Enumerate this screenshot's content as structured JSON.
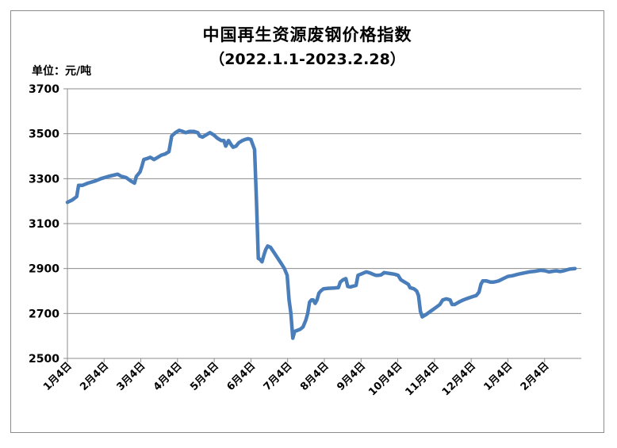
{
  "chart_data": {
    "type": "line",
    "title": "中国再生资源废钢价格指数",
    "subtitle": "（2022.1.1-2023.2.28）",
    "unit": "单位：元/吨",
    "ylim": [
      2500,
      3700
    ],
    "y_ticks": [
      2500,
      2700,
      2900,
      3100,
      3300,
      3500,
      3700
    ],
    "grid": "horizontal",
    "legend": "none",
    "line_color": "#4a7ebb",
    "x_tick_labels": [
      "1月4日",
      "2月4日",
      "3月4日",
      "4月4日",
      "5月4日",
      "6月4日",
      "7月4日",
      "8月4日",
      "9月4日",
      "10月4日",
      "11月4日",
      "12月4日",
      "1月4日",
      "2月4日"
    ],
    "series": [
      {
        "values": [
          [
            0,
            3195
          ],
          [
            5,
            3205
          ],
          [
            10,
            3220
          ],
          [
            12,
            3270
          ],
          [
            16,
            3270
          ],
          [
            22,
            3280
          ],
          [
            30,
            3290
          ],
          [
            36,
            3300
          ],
          [
            44,
            3310
          ],
          [
            54,
            3320
          ],
          [
            58,
            3310
          ],
          [
            63,
            3305
          ],
          [
            68,
            3290
          ],
          [
            72,
            3280
          ],
          [
            74,
            3310
          ],
          [
            78,
            3330
          ],
          [
            80,
            3355
          ],
          [
            82,
            3385
          ],
          [
            86,
            3390
          ],
          [
            89,
            3395
          ],
          [
            93,
            3385
          ],
          [
            97,
            3395
          ],
          [
            101,
            3405
          ],
          [
            105,
            3410
          ],
          [
            109,
            3420
          ],
          [
            112,
            3490
          ],
          [
            116,
            3505
          ],
          [
            120,
            3515
          ],
          [
            124,
            3510
          ],
          [
            127,
            3505
          ],
          [
            131,
            3510
          ],
          [
            136,
            3510
          ],
          [
            140,
            3505
          ],
          [
            142,
            3490
          ],
          [
            145,
            3485
          ],
          [
            149,
            3495
          ],
          [
            153,
            3505
          ],
          [
            157,
            3495
          ],
          [
            161,
            3480
          ],
          [
            165,
            3470
          ],
          [
            168,
            3470
          ],
          [
            170,
            3445
          ],
          [
            173,
            3470
          ],
          [
            176,
            3450
          ],
          [
            178,
            3440
          ],
          [
            181,
            3445
          ],
          [
            184,
            3460
          ],
          [
            188,
            3470
          ],
          [
            191,
            3475
          ],
          [
            194,
            3478
          ],
          [
            197,
            3475
          ],
          [
            201,
            3430
          ],
          [
            203,
            3200
          ],
          [
            205,
            2945
          ],
          [
            207,
            2940
          ],
          [
            209,
            2930
          ],
          [
            211,
            2960
          ],
          [
            213,
            2985
          ],
          [
            215,
            3000
          ],
          [
            218,
            2995
          ],
          [
            222,
            2970
          ],
          [
            226,
            2945
          ],
          [
            230,
            2920
          ],
          [
            233,
            2900
          ],
          [
            236,
            2870
          ],
          [
            238,
            2760
          ],
          [
            240,
            2700
          ],
          [
            242,
            2590
          ],
          [
            244,
            2620
          ],
          [
            247,
            2625
          ],
          [
            250,
            2630
          ],
          [
            253,
            2640
          ],
          [
            256,
            2670
          ],
          [
            258,
            2700
          ],
          [
            260,
            2750
          ],
          [
            262,
            2760
          ],
          [
            264,
            2760
          ],
          [
            266,
            2745
          ],
          [
            268,
            2760
          ],
          [
            270,
            2790
          ],
          [
            272,
            2800
          ],
          [
            275,
            2810
          ],
          [
            280,
            2812
          ],
          [
            286,
            2813
          ],
          [
            291,
            2815
          ],
          [
            293,
            2840
          ],
          [
            296,
            2850
          ],
          [
            299,
            2855
          ],
          [
            301,
            2820
          ],
          [
            304,
            2818
          ],
          [
            307,
            2822
          ],
          [
            310,
            2825
          ],
          [
            312,
            2870
          ],
          [
            315,
            2875
          ],
          [
            318,
            2880
          ],
          [
            321,
            2885
          ],
          [
            325,
            2880
          ],
          [
            328,
            2875
          ],
          [
            331,
            2870
          ],
          [
            334,
            2870
          ],
          [
            337,
            2872
          ],
          [
            340,
            2882
          ],
          [
            343,
            2880
          ],
          [
            346,
            2878
          ],
          [
            351,
            2875
          ],
          [
            355,
            2870
          ],
          [
            358,
            2850
          ],
          [
            362,
            2840
          ],
          [
            366,
            2830
          ],
          [
            368,
            2815
          ],
          [
            372,
            2810
          ],
          [
            375,
            2800
          ],
          [
            377,
            2780
          ],
          [
            379,
            2710
          ],
          [
            381,
            2685
          ],
          [
            385,
            2695
          ],
          [
            390,
            2710
          ],
          [
            395,
            2725
          ],
          [
            400,
            2740
          ],
          [
            403,
            2760
          ],
          [
            407,
            2765
          ],
          [
            411,
            2760
          ],
          [
            413,
            2740
          ],
          [
            416,
            2740
          ],
          [
            420,
            2750
          ],
          [
            425,
            2760
          ],
          [
            430,
            2768
          ],
          [
            435,
            2775
          ],
          [
            439,
            2780
          ],
          [
            442,
            2795
          ],
          [
            444,
            2830
          ],
          [
            446,
            2845
          ],
          [
            450,
            2845
          ],
          [
            454,
            2840
          ],
          [
            458,
            2840
          ],
          [
            463,
            2845
          ],
          [
            468,
            2855
          ],
          [
            473,
            2865
          ],
          [
            478,
            2868
          ],
          [
            484,
            2875
          ],
          [
            490,
            2880
          ],
          [
            496,
            2885
          ],
          [
            502,
            2888
          ],
          [
            508,
            2892
          ],
          [
            513,
            2890
          ],
          [
            517,
            2885
          ],
          [
            521,
            2888
          ],
          [
            525,
            2890
          ],
          [
            529,
            2887
          ],
          [
            533,
            2890
          ],
          [
            537,
            2895
          ],
          [
            540,
            2898
          ],
          [
            545,
            2900
          ]
        ]
      }
    ]
  }
}
